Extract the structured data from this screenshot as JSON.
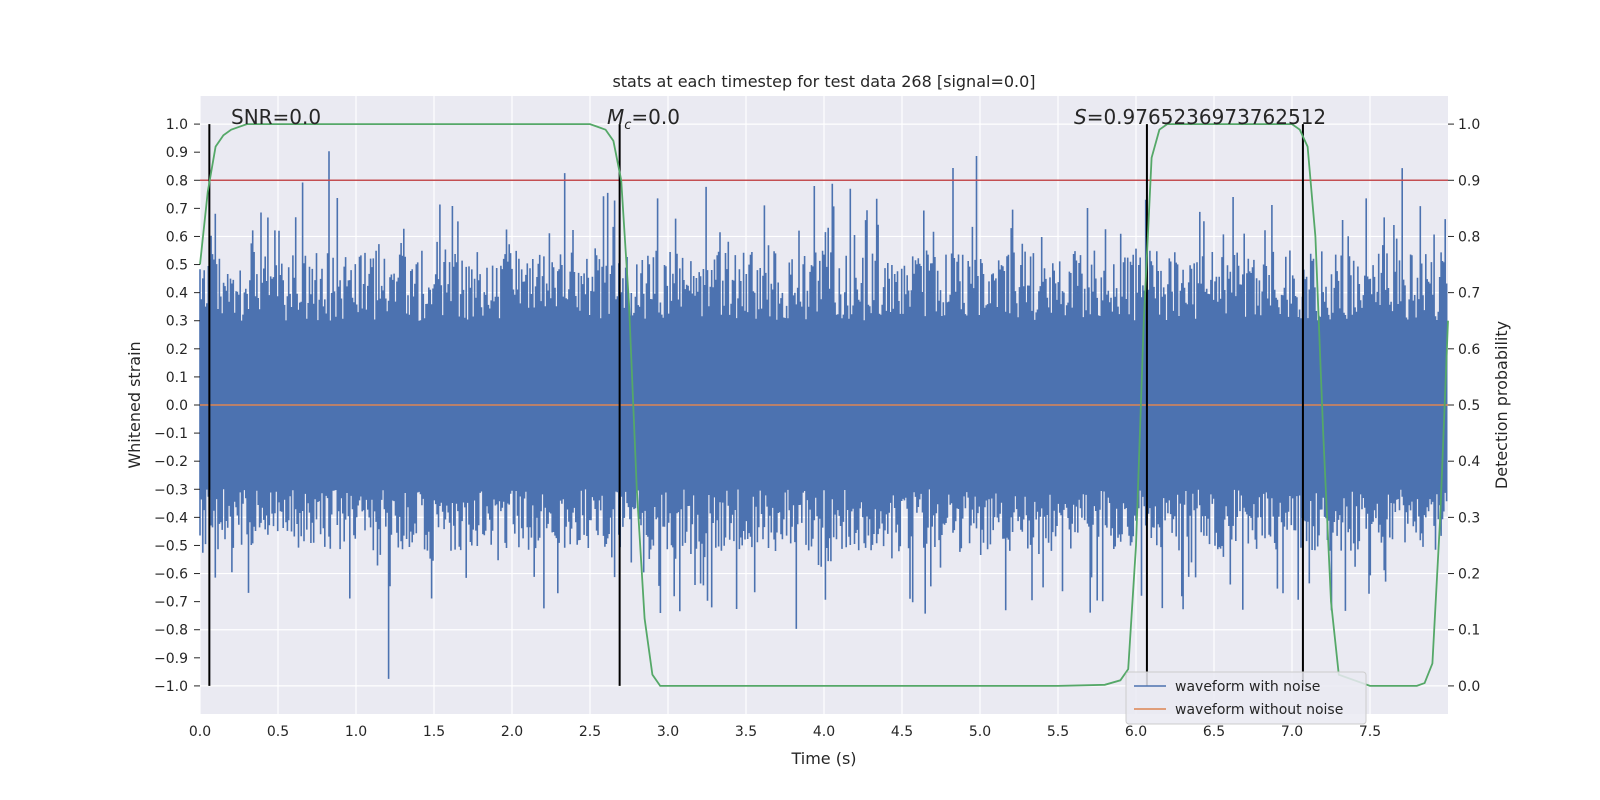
{
  "chart_data": {
    "type": "line",
    "title": "stats at each timestep for test data 268 [signal=0.0]",
    "xlabel": "Time (s)",
    "ylabel_left": "Whitened strain",
    "ylabel_right": "Detection probability",
    "xlim": [
      0.0,
      8.0
    ],
    "ylim_left": [
      -1.1,
      1.1
    ],
    "ylim_right": [
      -0.05,
      1.05
    ],
    "xticks": [
      "0.0",
      "0.5",
      "1.0",
      "1.5",
      "2.0",
      "2.5",
      "3.0",
      "3.5",
      "4.0",
      "4.5",
      "5.0",
      "5.5",
      "6.0",
      "6.5",
      "7.0",
      "7.5"
    ],
    "xtick_values": [
      0.0,
      0.5,
      1.0,
      1.5,
      2.0,
      2.5,
      3.0,
      3.5,
      4.0,
      4.5,
      5.0,
      5.5,
      6.0,
      6.5,
      7.0,
      7.5
    ],
    "yticks_left": [
      "1.0",
      "0.9",
      "0.8",
      "0.7",
      "0.6",
      "0.5",
      "0.4",
      "0.3",
      "0.2",
      "0.1",
      "0.0",
      "−0.1",
      "−0.2",
      "−0.3",
      "−0.4",
      "−0.5",
      "−0.6",
      "−0.7",
      "−0.8",
      "−0.9",
      "−1.0"
    ],
    "ytick_values_left": [
      1.0,
      0.9,
      0.8,
      0.7,
      0.6,
      0.5,
      0.4,
      0.3,
      0.2,
      0.1,
      0.0,
      -0.1,
      -0.2,
      -0.3,
      -0.4,
      -0.5,
      -0.6,
      -0.7,
      -0.8,
      -0.9,
      -1.0
    ],
    "yticks_right": [
      "1.0",
      "0.9",
      "0.8",
      "0.7",
      "0.6",
      "0.5",
      "0.4",
      "0.3",
      "0.2",
      "0.1",
      "0.0"
    ],
    "ytick_values_right": [
      1.0,
      0.9,
      0.8,
      0.7,
      0.6,
      0.5,
      0.4,
      0.3,
      0.2,
      0.1,
      0.0
    ],
    "grid": true,
    "threshold_right": 0.9,
    "vertical_lines_x": [
      0.06,
      2.69,
      6.07,
      7.07
    ],
    "noise_seed": 268,
    "noise_sample_count": 900,
    "series": [
      {
        "name": "waveform with noise",
        "color": "#4c72b0",
        "axis": "left"
      },
      {
        "name": "waveform without noise",
        "color": "#dd8452",
        "axis": "left",
        "constant": 0.0
      },
      {
        "name": "detection probability",
        "color": "#55a868",
        "axis": "right",
        "x": [
          0.0,
          0.05,
          0.1,
          0.15,
          0.2,
          0.3,
          0.4,
          0.5,
          1.0,
          1.5,
          2.0,
          2.5,
          2.55,
          2.6,
          2.65,
          2.7,
          2.75,
          2.8,
          2.85,
          2.9,
          2.95,
          3.0,
          3.5,
          4.0,
          4.5,
          5.0,
          5.5,
          5.8,
          5.9,
          5.95,
          6.0,
          6.05,
          6.1,
          6.15,
          6.2,
          6.5,
          7.0,
          7.05,
          7.1,
          7.15,
          7.2,
          7.25,
          7.3,
          7.5,
          7.7,
          7.8,
          7.85,
          7.9,
          7.95,
          8.0
        ],
        "values": [
          0.75,
          0.88,
          0.96,
          0.98,
          0.99,
          1.0,
          1.0,
          1.0,
          1.0,
          1.0,
          1.0,
          1.0,
          0.995,
          0.99,
          0.97,
          0.9,
          0.68,
          0.35,
          0.12,
          0.02,
          0.0,
          0.0,
          0.0,
          0.0,
          0.0,
          0.0,
          0.0,
          0.002,
          0.01,
          0.03,
          0.25,
          0.65,
          0.94,
          0.99,
          1.0,
          1.0,
          1.0,
          0.99,
          0.96,
          0.8,
          0.45,
          0.15,
          0.02,
          0.0,
          0.0,
          0.0,
          0.005,
          0.04,
          0.3,
          0.65
        ]
      }
    ],
    "annotations": {
      "snr_text": "SNR=0.0",
      "mc_symbol": "M",
      "mc_subscript": "c",
      "mc_value": "=0.0",
      "s_symbol": "S",
      "s_value": "=0.9765236973762512"
    },
    "legend": {
      "placement": "lower-right",
      "entries": [
        "waveform with noise",
        "waveform without noise"
      ]
    }
  },
  "colors": {
    "plot_bg": "#eaeaf2",
    "grid": "#ffffff",
    "noise": "#4c72b0",
    "clean": "#dd8452",
    "prob": "#55a868",
    "threshold": "#c44e52",
    "vline": "#000000"
  }
}
